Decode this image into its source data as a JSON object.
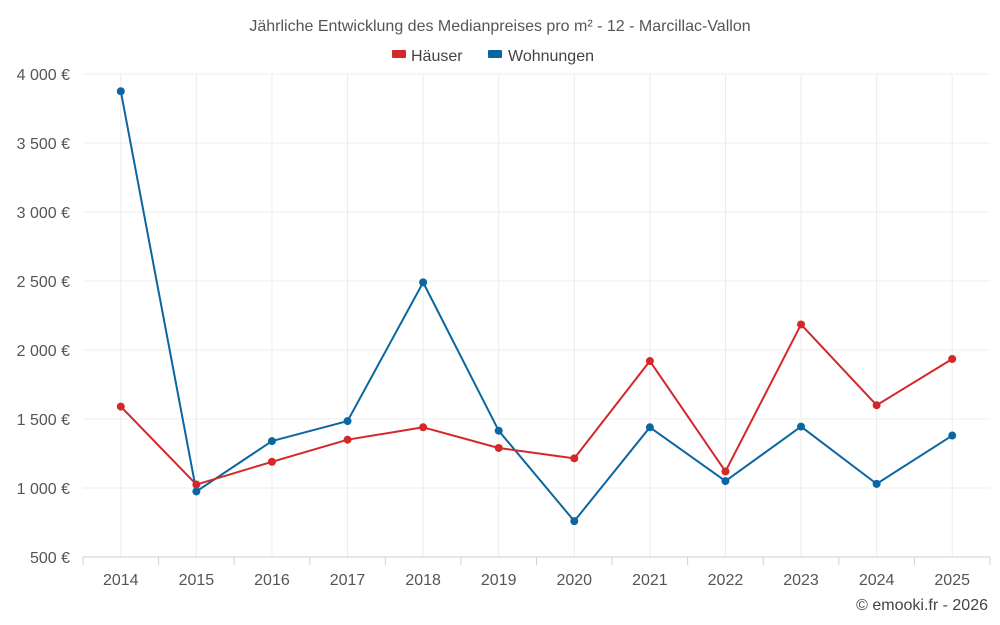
{
  "chart_data": {
    "type": "line",
    "title": "Jährliche Entwicklung des Medianpreises pro m² - 12 - Marcillac-Vallon",
    "categories": [
      "2014",
      "2015",
      "2016",
      "2017",
      "2018",
      "2019",
      "2020",
      "2021",
      "2022",
      "2023",
      "2024",
      "2025"
    ],
    "series": [
      {
        "name": "Häuser",
        "color": "#d62728",
        "values": [
          1590,
          1025,
          1190,
          1350,
          1440,
          1290,
          1215,
          1920,
          1120,
          2185,
          1600,
          1935
        ]
      },
      {
        "name": "Wohnungen",
        "color": "#0a66a0",
        "values": [
          3875,
          975,
          1340,
          1485,
          2490,
          1415,
          760,
          1440,
          1050,
          1445,
          1030,
          1380
        ]
      }
    ],
    "y_ticks": [
      500,
      1000,
      1500,
      2000,
      2500,
      3000,
      3500,
      4000
    ],
    "y_tick_labels": [
      "500 €",
      "1 000 €",
      "1 500 €",
      "2 000 €",
      "2 500 €",
      "3 000 €",
      "3 500 €",
      "4 000 €"
    ],
    "ylim": [
      500,
      4000
    ],
    "xlabel": "",
    "ylabel": "",
    "grid": true,
    "legend_position": "top-center"
  },
  "credit": "© emooki.fr - 2026"
}
